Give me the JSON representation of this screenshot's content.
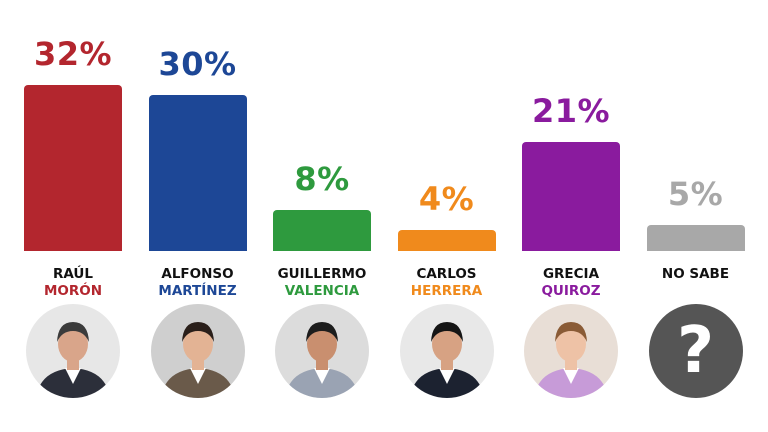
{
  "chart_data": {
    "type": "bar",
    "title": "",
    "xlabel": "",
    "ylabel": "",
    "ylim": [
      0,
      32
    ],
    "categories": [
      "RAÚL MORÓN",
      "ALFONSO MARTÍNEZ",
      "GUILLERMO VALENCIA",
      "CARLOS HERRERA",
      "GRECIA QUIROZ",
      "NO SABE"
    ],
    "values": [
      32,
      30,
      8,
      4,
      21,
      5
    ],
    "value_labels": [
      "32%",
      "30%",
      "8%",
      "4%",
      "21%",
      "5%"
    ],
    "colors": [
      "#b3262e",
      "#1d4796",
      "#2e9a3e",
      "#f08a1c",
      "#8a1b9e",
      "#a8a8a8"
    ]
  },
  "candidates": [
    {
      "first": "RAÚL",
      "last": "MORÓN",
      "avatar": "person-photo-icon"
    },
    {
      "first": "ALFONSO",
      "last": "MARTÍNEZ",
      "avatar": "person-photo-icon"
    },
    {
      "first": "GUILLERMO",
      "last": "VALENCIA",
      "avatar": "person-photo-icon"
    },
    {
      "first": "CARLOS",
      "last": "HERRERA",
      "avatar": "person-photo-icon"
    },
    {
      "first": "GRECIA",
      "last": "QUIROZ",
      "avatar": "person-photo-icon"
    },
    {
      "first": "NO SABE",
      "last": "",
      "avatar": "question-mark-icon",
      "avatar_glyph": "?"
    }
  ]
}
